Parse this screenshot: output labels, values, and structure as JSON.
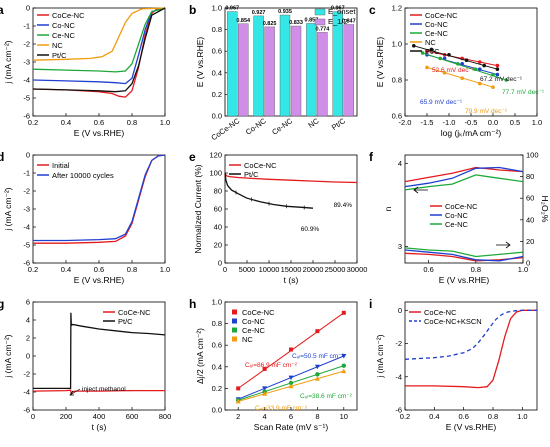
{
  "colors": {
    "CoCe-NC": "#e41a1c",
    "Co-NC": "#1f3fd0",
    "Ce-NC": "#1fa83a",
    "NC": "#f29b0c",
    "Pt/C": "#111111",
    "bar_onset": "#35e6e6",
    "bar_half": "#cf8fe8",
    "dash_blue": "#1f3fd0"
  },
  "chart_data": [
    {
      "panel": "a",
      "type": "line",
      "xlabel": "E (V vs.RHE)",
      "ylabel": "j (mA cm⁻²)",
      "xlim": [
        0.2,
        1.0
      ],
      "ylim": [
        -6,
        0
      ],
      "xticks": [
        "0.2",
        "0.4",
        "0.6",
        "0.8",
        "1.0"
      ],
      "yticks": [
        "-6",
        "-5",
        "-4",
        "-3",
        "-2",
        "-1",
        "0"
      ],
      "legend": [
        "CoCe-NC",
        "Co-NC",
        "Ce-NC",
        "NC",
        "Pt/C"
      ],
      "legend_position": "top-left",
      "series": [
        {
          "name": "CoCe-NC",
          "x": [
            0.2,
            0.4,
            0.6,
            0.68,
            0.72,
            0.76,
            0.8,
            0.84,
            0.88,
            0.92,
            0.95,
            1.0
          ],
          "y": [
            -4.5,
            -4.55,
            -4.65,
            -4.75,
            -4.9,
            -4.95,
            -4.6,
            -3.3,
            -1.5,
            -0.3,
            -0.05,
            0
          ]
        },
        {
          "name": "Co-NC",
          "x": [
            0.2,
            0.4,
            0.6,
            0.7,
            0.76,
            0.8,
            0.84,
            0.88,
            0.92,
            1.0
          ],
          "y": [
            -4.0,
            -4.05,
            -4.1,
            -4.15,
            -4.2,
            -3.9,
            -2.6,
            -1.2,
            -0.2,
            0
          ]
        },
        {
          "name": "Ce-NC",
          "x": [
            0.2,
            0.4,
            0.6,
            0.7,
            0.76,
            0.8,
            0.84,
            0.88,
            0.92,
            1.0
          ],
          "y": [
            -3.4,
            -3.45,
            -3.5,
            -3.55,
            -3.5,
            -3.1,
            -2.0,
            -0.9,
            -0.2,
            0
          ]
        },
        {
          "name": "NC",
          "x": [
            0.2,
            0.4,
            0.55,
            0.62,
            0.68,
            0.72,
            0.76,
            0.8,
            0.86,
            1.0
          ],
          "y": [
            -2.9,
            -2.85,
            -2.8,
            -2.7,
            -2.4,
            -1.6,
            -0.8,
            -0.3,
            -0.05,
            0
          ]
        },
        {
          "name": "Pt/C",
          "x": [
            0.2,
            0.4,
            0.6,
            0.7,
            0.76,
            0.8,
            0.84,
            0.88,
            0.92,
            1.0
          ],
          "y": [
            -4.5,
            -4.55,
            -4.6,
            -4.65,
            -4.6,
            -4.2,
            -3.2,
            -1.7,
            -0.4,
            0
          ]
        }
      ]
    },
    {
      "panel": "b",
      "type": "bar",
      "ylabel": "E (V vs.RHE)",
      "ylim": [
        0.0,
        1.0
      ],
      "yticks": [
        "0.0",
        "0.2",
        "0.4",
        "0.6",
        "0.8",
        "1.0"
      ],
      "categories": [
        "CoCe-NC",
        "Co-NC",
        "Ce-NC",
        "NC",
        "Pt/C"
      ],
      "legend": [
        "E_onset",
        "E_1/2"
      ],
      "legend_position": "top-right",
      "series": [
        {
          "name": "E_onset",
          "values": [
            0.967,
            0.927,
            0.935,
            0.857,
            0.967
          ],
          "labels": [
            "0.967",
            "0.927",
            "0.935",
            "0.857",
            "0.967"
          ]
        },
        {
          "name": "E_1/2",
          "values": [
            0.854,
            0.825,
            0.833,
            0.774,
            0.847
          ],
          "labels": [
            "0.854",
            "0.825",
            "0.833",
            "0.774",
            "0.847"
          ]
        }
      ]
    },
    {
      "panel": "c",
      "type": "scatter",
      "xlabel": "log (jₖ/mA cm⁻²)",
      "ylabel": "E (V vs.RHE)",
      "xlim": [
        -2.0,
        1.0
      ],
      "ylim": [
        0.6,
        1.2
      ],
      "xticks": [
        "-2.0",
        "-1.5",
        "-1.0",
        "-0.5",
        "0.0",
        "0.5",
        "1.0"
      ],
      "yticks": [
        "0.6",
        "0.8",
        "1.0",
        "1.2"
      ],
      "legend": [
        "CoCe-NC",
        "Co-NC",
        "Ce-NC",
        "NC",
        "Pt/C"
      ],
      "legend_position": "top-left",
      "annotations": [
        "52.6 mV dec⁻¹",
        "67.2 mV dec⁻¹",
        "65.9 mV dec⁻¹",
        "77.7 mV dec⁻¹",
        "79.9 mV dec⁻¹"
      ],
      "series": [
        {
          "name": "CoCe-NC",
          "x": [
            -1.5,
            -1.1,
            -0.7,
            -0.3,
            0.1
          ],
          "y": [
            0.96,
            0.94,
            0.92,
            0.9,
            0.88
          ]
        },
        {
          "name": "Co-NC",
          "x": [
            -1.5,
            -1.1,
            -0.7,
            -0.3,
            0.1
          ],
          "y": [
            0.94,
            0.92,
            0.89,
            0.86,
            0.83
          ]
        },
        {
          "name": "Ce-NC",
          "x": [
            -1.6,
            -1.2,
            -0.8,
            -0.4,
            0.0,
            0.3
          ],
          "y": [
            0.95,
            0.92,
            0.89,
            0.86,
            0.83,
            0.8
          ]
        },
        {
          "name": "NC",
          "x": [
            -1.5,
            -1.1,
            -0.7,
            -0.3,
            0.0
          ],
          "y": [
            0.87,
            0.84,
            0.81,
            0.78,
            0.76
          ]
        },
        {
          "name": "Pt/C",
          "x": [
            -1.8,
            -1.4,
            -1.0,
            -0.6,
            -0.2,
            0.1
          ],
          "y": [
            0.99,
            0.97,
            0.94,
            0.91,
            0.88,
            0.86
          ]
        }
      ]
    },
    {
      "panel": "d",
      "type": "line",
      "xlabel": "E (V vs.RHE)",
      "ylabel": "j (mA cm⁻²)",
      "xlim": [
        0.2,
        1.0
      ],
      "ylim": [
        -6,
        0
      ],
      "xticks": [
        "0.2",
        "0.4",
        "0.6",
        "0.8",
        "1.0"
      ],
      "yticks": [
        "-6",
        "-5",
        "-4",
        "-3",
        "-2",
        "-1",
        "0"
      ],
      "legend": [
        "Initial",
        "After 10000 cycles"
      ],
      "legend_position": "top-left",
      "series": [
        {
          "name": "Initial",
          "x": [
            0.2,
            0.4,
            0.6,
            0.7,
            0.76,
            0.8,
            0.84,
            0.88,
            0.92,
            0.96,
            1.0
          ],
          "y": [
            -4.9,
            -4.9,
            -4.85,
            -4.8,
            -4.5,
            -3.8,
            -2.5,
            -1.2,
            -0.3,
            -0.05,
            0
          ]
        },
        {
          "name": "After 10000 cycles",
          "x": [
            0.2,
            0.4,
            0.6,
            0.7,
            0.76,
            0.8,
            0.84,
            0.88,
            0.92,
            0.96,
            1.0
          ],
          "y": [
            -4.75,
            -4.75,
            -4.7,
            -4.65,
            -4.4,
            -3.7,
            -2.4,
            -1.1,
            -0.3,
            -0.05,
            0
          ]
        }
      ]
    },
    {
      "panel": "e",
      "type": "line",
      "xlabel": "t (s)",
      "ylabel": "Normalized Current (%)",
      "xlim": [
        0,
        30000
      ],
      "ylim": [
        0,
        120
      ],
      "xticks": [
        "0",
        "5000",
        "10000",
        "15000",
        "20000",
        "25000",
        "30000"
      ],
      "yticks": [
        "0",
        "20",
        "40",
        "60",
        "80",
        "100",
        "120"
      ],
      "legend": [
        "CoCe-NC",
        "Pt/C"
      ],
      "legend_position": "top-left",
      "annotations": [
        "89.4%",
        "60.9%"
      ],
      "series": [
        {
          "name": "CoCe-NC",
          "x": [
            0,
            300,
            1000,
            3000,
            6000,
            10000,
            15000,
            20000,
            25000,
            30000
          ],
          "y": [
            100,
            97,
            96,
            95,
            94,
            93,
            92,
            91,
            90,
            89.4
          ]
        },
        {
          "name": "Pt/C",
          "x": [
            0,
            200,
            600,
            1500,
            3000,
            5000,
            8000,
            11000,
            14000,
            17000,
            20000
          ],
          "y": [
            100,
            92,
            86,
            81,
            77,
            72,
            68,
            65,
            63,
            62,
            60.9
          ]
        }
      ]
    },
    {
      "panel": "f",
      "type": "line",
      "xlabel": "E (V vs.RHE)",
      "ylabel": "n",
      "ylabel_right": "H₂O₂%",
      "xlim": [
        0.5,
        1.0
      ],
      "ylim": [
        2.8,
        4.1
      ],
      "ylim_right": [
        0,
        100
      ],
      "xticks": [
        "0.6",
        "0.8",
        "1.0"
      ],
      "yticks": [
        "3",
        "4"
      ],
      "yticks_right": [
        "0",
        "20",
        "40",
        "60",
        "80",
        "100"
      ],
      "legend": [
        "CoCe-NC",
        "Co-NC",
        "Ce-NC"
      ],
      "legend_position": "center",
      "series": [
        {
          "name": "CoCe-NC n",
          "x": [
            0.5,
            0.6,
            0.7,
            0.8,
            0.9,
            1.0
          ],
          "y": [
            3.78,
            3.83,
            3.88,
            3.95,
            3.92,
            3.9
          ]
        },
        {
          "name": "Co-NC n",
          "x": [
            0.5,
            0.6,
            0.7,
            0.8,
            0.9,
            1.0
          ],
          "y": [
            3.72,
            3.76,
            3.82,
            3.94,
            3.95,
            3.9
          ]
        },
        {
          "name": "Ce-NC n",
          "x": [
            0.5,
            0.6,
            0.7,
            0.8,
            0.9,
            1.0
          ],
          "y": [
            3.68,
            3.72,
            3.75,
            3.86,
            3.82,
            3.78
          ]
        },
        {
          "name": "CoCe-NC H2O2%",
          "x": [
            0.5,
            0.6,
            0.7,
            0.8,
            0.9,
            1.0
          ],
          "y": [
            9,
            8,
            6,
            2,
            3,
            5
          ]
        },
        {
          "name": "Co-NC H2O2%",
          "x": [
            0.5,
            0.6,
            0.7,
            0.8,
            0.9,
            1.0
          ],
          "y": [
            12,
            10,
            8,
            3,
            2,
            6
          ]
        },
        {
          "name": "Ce-NC H2O2%",
          "x": [
            0.5,
            0.6,
            0.7,
            0.8,
            0.9,
            1.0
          ],
          "y": [
            14,
            12,
            11,
            6,
            8,
            10
          ]
        }
      ]
    },
    {
      "panel": "g",
      "type": "line",
      "xlabel": "t (s)",
      "ylabel": "j (mA cm⁻²)",
      "xlim": [
        0,
        800
      ],
      "ylim": [
        -6,
        6
      ],
      "xticks": [
        "0",
        "200",
        "400",
        "600",
        "800"
      ],
      "yticks": [
        "-6",
        "-4",
        "-2",
        "0",
        "2",
        "4",
        "6"
      ],
      "legend": [
        "CoCe-NC",
        "Pt/C"
      ],
      "legend_position": "top-right",
      "annotations": [
        "inject methanol"
      ],
      "series": [
        {
          "name": "CoCe-NC",
          "x": [
            0,
            200,
            228,
            232,
            240,
            260,
            400,
            600,
            800
          ],
          "y": [
            -3.9,
            -3.85,
            -3.8,
            -4.2,
            -3.95,
            -3.9,
            -3.9,
            -3.85,
            -3.85
          ]
        },
        {
          "name": "Pt/C",
          "x": [
            0,
            200,
            228,
            230,
            232,
            240,
            300,
            400,
            500,
            600,
            700,
            800
          ],
          "y": [
            -3.6,
            -3.6,
            -3.6,
            4.8,
            3.4,
            3.5,
            3.3,
            3.0,
            2.8,
            2.6,
            2.5,
            2.35
          ]
        }
      ]
    },
    {
      "panel": "h",
      "type": "scatter",
      "xlabel": "Scan Rate (mV s⁻¹)",
      "ylabel": "Δj/2 (mA cm⁻²)",
      "xlim": [
        1,
        11
      ],
      "ylim": [
        0.0,
        1.0
      ],
      "xticks": [
        "2",
        "4",
        "6",
        "8",
        "10"
      ],
      "yticks": [
        "0.0",
        "0.2",
        "0.4",
        "0.6",
        "0.8",
        "1.0"
      ],
      "legend": [
        "CoCe-NC",
        "Co-NC",
        "Ce-NC",
        "NC"
      ],
      "legend_position": "top-left",
      "annotations": [
        "Cₑₗ=86.9 mF cm⁻²",
        "Cₑₗ=50.5 mF cm⁻²",
        "Cₑₗ=38.6 mF cm⁻²",
        "Cₑₗ=33.9 mF cm⁻²"
      ],
      "series": [
        {
          "name": "CoCe-NC",
          "x": [
            2,
            4,
            6,
            8,
            10
          ],
          "y": [
            0.2,
            0.38,
            0.56,
            0.73,
            0.9
          ]
        },
        {
          "name": "Co-NC",
          "x": [
            2,
            4,
            6,
            8,
            10
          ],
          "y": [
            0.1,
            0.2,
            0.3,
            0.4,
            0.5
          ]
        },
        {
          "name": "Ce-NC",
          "x": [
            2,
            4,
            6,
            8,
            10
          ],
          "y": [
            0.09,
            0.17,
            0.25,
            0.33,
            0.41
          ]
        },
        {
          "name": "NC",
          "x": [
            2,
            4,
            6,
            8,
            10
          ],
          "y": [
            0.08,
            0.15,
            0.22,
            0.29,
            0.36
          ]
        }
      ]
    },
    {
      "panel": "i",
      "type": "line",
      "xlabel": "E (V vs.RHE)",
      "ylabel": "j (mA cm⁻²)",
      "xlim": [
        0.2,
        1.1
      ],
      "ylim": [
        -6,
        0.5
      ],
      "xticks": [
        "0.2",
        "0.4",
        "0.6",
        "0.8",
        "1.0"
      ],
      "yticks": [
        "-6",
        "-4",
        "-2",
        "0"
      ],
      "legend": [
        "CoCe-NC",
        "CoCe-NC+KSCN"
      ],
      "legend_position": "top-left",
      "series": [
        {
          "name": "CoCe-NC",
          "x": [
            0.2,
            0.4,
            0.6,
            0.7,
            0.76,
            0.8,
            0.84,
            0.88,
            0.92,
            0.96,
            1.0,
            1.1
          ],
          "y": [
            -4.55,
            -4.55,
            -4.6,
            -4.65,
            -4.6,
            -4.2,
            -3.0,
            -1.6,
            -0.5,
            -0.1,
            0,
            0
          ]
        },
        {
          "name": "CoCe-NC+KSCN",
          "x": [
            0.2,
            0.4,
            0.5,
            0.6,
            0.66,
            0.7,
            0.74,
            0.78,
            0.82,
            0.86,
            0.9,
            0.95,
            1.0,
            1.1
          ],
          "y": [
            -2.95,
            -2.85,
            -2.75,
            -2.55,
            -2.3,
            -1.95,
            -1.5,
            -1.0,
            -0.55,
            -0.25,
            -0.1,
            -0.03,
            0,
            0
          ]
        }
      ]
    }
  ]
}
